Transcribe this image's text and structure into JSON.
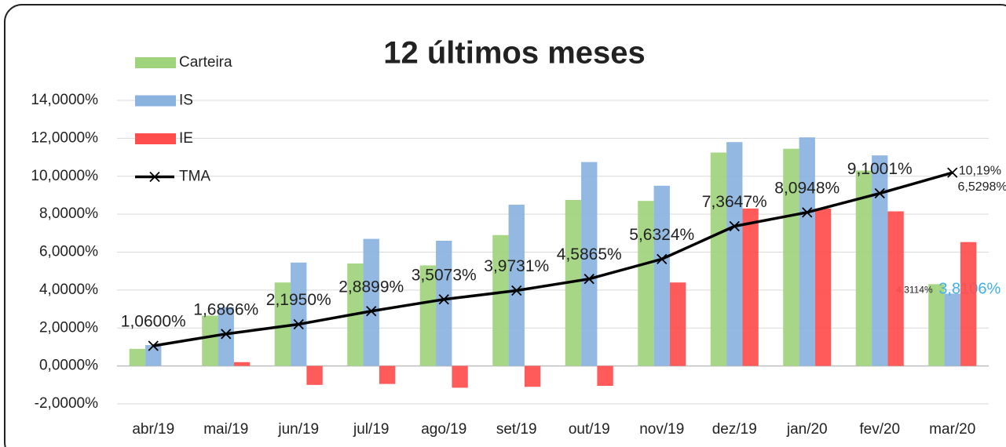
{
  "chart_data": {
    "type": "bar",
    "title": "12 últimos meses",
    "categories": [
      "abr/19",
      "mai/19",
      "jun/19",
      "jul/19",
      "ago/19",
      "set/19",
      "out/19",
      "nov/19",
      "dez/19",
      "jan/20",
      "fev/20",
      "mar/20"
    ],
    "series": [
      {
        "name": "Carteira",
        "type": "bar",
        "color": "#9fd47c",
        "values": [
          0.9,
          2.65,
          4.4,
          5.4,
          5.3,
          6.9,
          8.75,
          8.7,
          11.25,
          11.45,
          10.3,
          4.3114
        ],
        "value_labels": [
          null,
          null,
          null,
          null,
          null,
          null,
          null,
          null,
          null,
          null,
          null,
          "4,3114%"
        ]
      },
      {
        "name": "IS",
        "type": "bar",
        "color": "#8ab3e0",
        "values": [
          1.1,
          3.1,
          5.45,
          6.7,
          6.6,
          8.5,
          10.75,
          9.5,
          11.8,
          12.05,
          11.1,
          3.8106
        ],
        "value_labels": [
          null,
          null,
          null,
          null,
          null,
          null,
          null,
          null,
          null,
          null,
          null,
          "3,8106%"
        ]
      },
      {
        "name": "IE",
        "type": "bar",
        "color": "#ff4d4d",
        "values": [
          0,
          0.2,
          -1.0,
          -0.95,
          -1.15,
          -1.1,
          -1.05,
          4.4,
          8.3,
          8.3,
          8.15,
          6.5298
        ],
        "value_labels": [
          null,
          null,
          null,
          null,
          null,
          null,
          null,
          null,
          null,
          null,
          null,
          "6,5298%"
        ]
      },
      {
        "name": "TMA",
        "type": "line",
        "color": "#000000",
        "values": [
          1.06,
          1.6866,
          2.195,
          2.8899,
          3.5073,
          3.9731,
          4.5865,
          5.6324,
          7.3647,
          8.0948,
          9.1001,
          10.19
        ],
        "value_labels": [
          "1,0600%",
          "1,6866%",
          "2,1950%",
          "2,8899%",
          "3,5073%",
          "3,9731%",
          "4,5865%",
          "5,6324%",
          "7,3647%",
          "8,0948%",
          "9,1001%",
          "10,19%"
        ]
      }
    ],
    "ylim": [
      -2,
      14
    ],
    "yticks": [
      {
        "value": -2,
        "label": "-2,0000%"
      },
      {
        "value": 0,
        "label": "0,0000%"
      },
      {
        "value": 2,
        "label": "2,0000%"
      },
      {
        "value": 4,
        "label": "4,0000%"
      },
      {
        "value": 6,
        "label": "6,0000%"
      },
      {
        "value": 8,
        "label": "8,0000%"
      },
      {
        "value": 10,
        "label": "10,0000%"
      },
      {
        "value": 12,
        "label": "12,0000%"
      },
      {
        "value": 14,
        "label": "14,0000%"
      }
    ],
    "grid": true,
    "legend": "top-left"
  }
}
